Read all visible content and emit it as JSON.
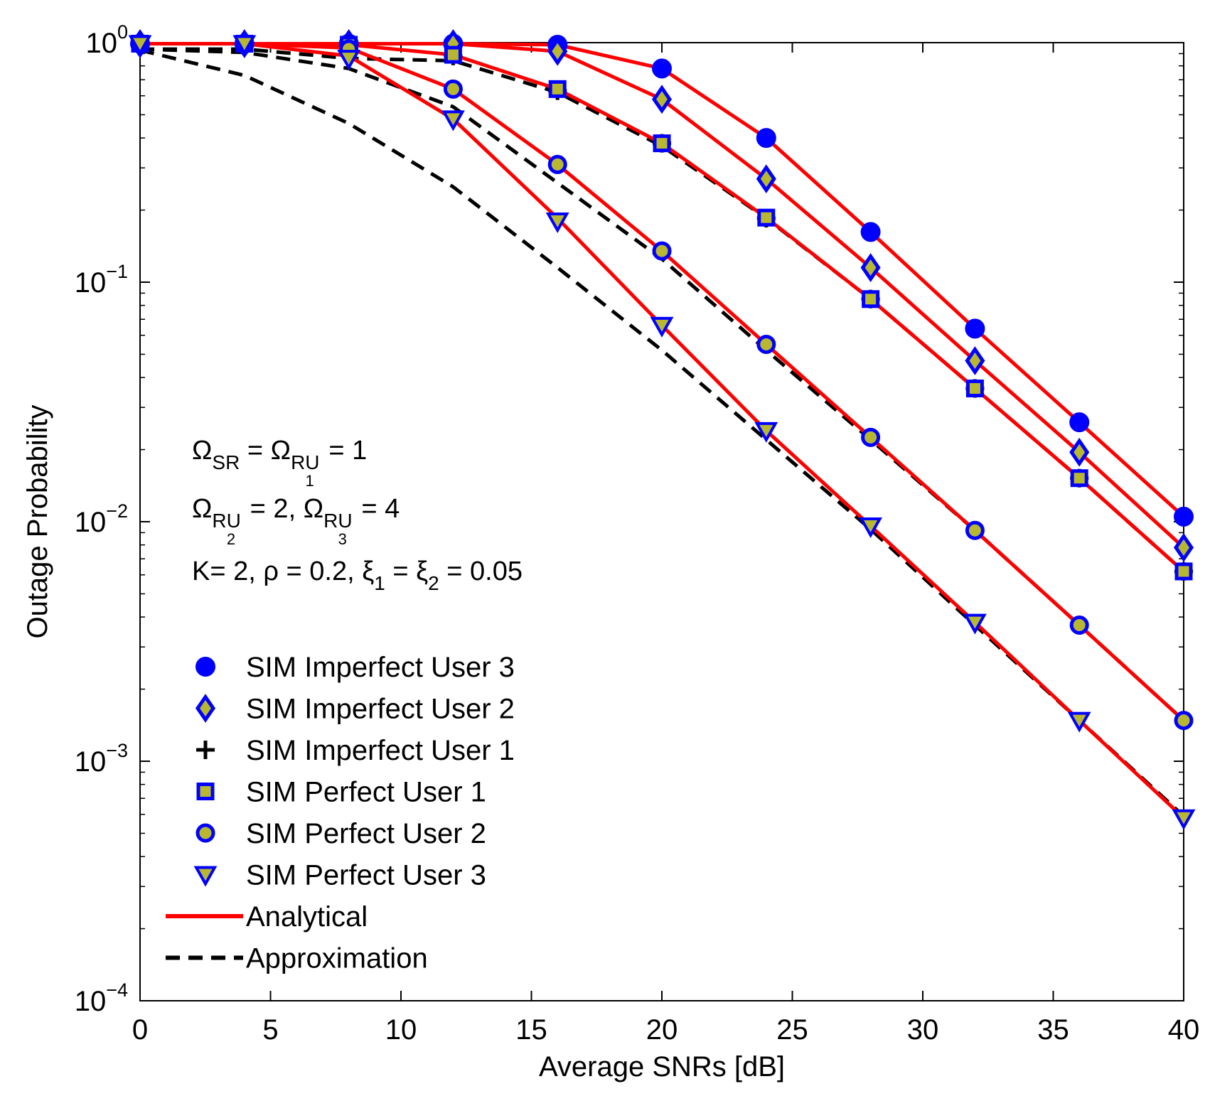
{
  "chart_data": {
    "type": "line",
    "title": "",
    "xlabel": "Average SNRs [dB]",
    "ylabel": "Outage Probability",
    "xlim": [
      0,
      40
    ],
    "ylim": [
      0.0001,
      1
    ],
    "yscale": "log",
    "xticks": [
      "0",
      "5",
      "10",
      "15",
      "20",
      "25",
      "30",
      "35",
      "40"
    ],
    "yticks": [
      {
        "base": "10",
        "exp": "0"
      },
      {
        "base": "10",
        "exp": "−1"
      },
      {
        "base": "10",
        "exp": "−2"
      },
      {
        "base": "10",
        "exp": "−3"
      },
      {
        "base": "10",
        "exp": "−4"
      }
    ],
    "x": [
      0,
      4,
      8,
      12,
      16,
      20,
      24,
      28,
      32,
      36,
      40
    ],
    "series": [
      {
        "name": "SIM Imperfect User 3",
        "marker": "circle",
        "color": "#0000ff",
        "fill": "#0000ff",
        "values": [
          0.99,
          0.99,
          0.99,
          0.99,
          0.98,
          0.78,
          0.4,
          0.162,
          0.064,
          0.026,
          0.0105
        ]
      },
      {
        "name": "SIM Imperfect User 2",
        "marker": "diamond",
        "color": "#0000ff",
        "fill": "#b8b830",
        "values": [
          0.99,
          0.99,
          0.99,
          0.99,
          0.92,
          0.58,
          0.27,
          0.115,
          0.047,
          0.0195,
          0.0078
        ]
      },
      {
        "name": "SIM Imperfect User 1",
        "marker": "plus",
        "color": "#000000",
        "fill": "none",
        "values": [
          0.99,
          0.99,
          0.98,
          0.88,
          0.63,
          0.38,
          0.185,
          0.085,
          0.036,
          0.0152,
          0.0062
        ]
      },
      {
        "name": "SIM Perfect User 1",
        "marker": "square",
        "color": "#0000ff",
        "fill": "#b8b830",
        "values": [
          0.99,
          0.99,
          0.98,
          0.89,
          0.64,
          0.38,
          0.186,
          0.085,
          0.036,
          0.0152,
          0.0062
        ]
      },
      {
        "name": "SIM Perfect User 2",
        "marker": "ring",
        "color": "#0000ff",
        "fill": "#b8b830",
        "values": [
          0.99,
          0.99,
          0.94,
          0.64,
          0.31,
          0.135,
          0.055,
          0.0225,
          0.0092,
          0.0037,
          0.00148
        ]
      },
      {
        "name": "SIM Perfect User 3",
        "marker": "triangle-down",
        "color": "#0000ff",
        "fill": "#b8b830",
        "values": [
          0.99,
          0.99,
          0.86,
          0.48,
          0.18,
          0.066,
          0.024,
          0.0096,
          0.0038,
          0.00148,
          0.00058
        ]
      }
    ],
    "analytical": {
      "name": "Analytical",
      "color": "#ff0000",
      "style": "solid",
      "curves": [
        [
          0.99,
          0.99,
          0.99,
          0.99,
          0.98,
          0.78,
          0.4,
          0.162,
          0.064,
          0.026,
          0.0105
        ],
        [
          0.99,
          0.99,
          0.99,
          0.99,
          0.92,
          0.58,
          0.27,
          0.115,
          0.047,
          0.0195,
          0.0078
        ],
        [
          0.99,
          0.99,
          0.98,
          0.89,
          0.64,
          0.38,
          0.186,
          0.085,
          0.036,
          0.0152,
          0.0062
        ],
        [
          0.99,
          0.99,
          0.95,
          0.64,
          0.31,
          0.135,
          0.055,
          0.0225,
          0.0092,
          0.0037,
          0.00148
        ],
        [
          0.99,
          0.99,
          0.88,
          0.48,
          0.185,
          0.066,
          0.024,
          0.0096,
          0.0038,
          0.00148,
          0.00058
        ]
      ]
    },
    "approximation": {
      "name": "Approximation",
      "color": "#000000",
      "style": "dashed",
      "curves": [
        [
          0.94,
          0.94,
          0.86,
          0.84,
          0.62,
          0.37,
          0.185,
          0.085,
          0.036,
          0.0152,
          0.0062
        ],
        [
          0.94,
          0.91,
          0.78,
          0.54,
          0.26,
          0.125,
          0.052,
          0.022,
          0.0092,
          0.0037,
          0.00148
        ],
        [
          0.93,
          0.73,
          0.46,
          0.25,
          0.115,
          0.052,
          0.022,
          0.0093,
          0.0037,
          0.00148,
          0.00059
        ]
      ]
    },
    "legend": {
      "placement": "lower-left",
      "entries": [
        "SIM Imperfect User 3",
        "SIM Imperfect User 2",
        "SIM Imperfect User 1",
        "SIM Perfect User 1",
        "SIM Perfect User 2",
        "SIM Perfect User 3",
        "Analytical",
        "Approximation"
      ]
    },
    "annotations": {
      "line1": {
        "omega": "Ω",
        "sub_sr": "SR",
        "eq1": " = ",
        "sub_ru": "RU",
        "sub_1": "1",
        "eq2": " = 1"
      },
      "line2": {
        "omega": "Ω",
        "sub_ru": "RU",
        "sub_2": "2",
        "mid": " = 2, ",
        "sub_3": "3",
        "end": " = 4"
      },
      "line3": {
        "start": "K= 2, ρ = 0.2, ",
        "xi": "ξ",
        "sub_1": "1",
        "mid": " = ",
        "sub_2": "2",
        "end": " = 0.05"
      }
    },
    "grid": false
  }
}
